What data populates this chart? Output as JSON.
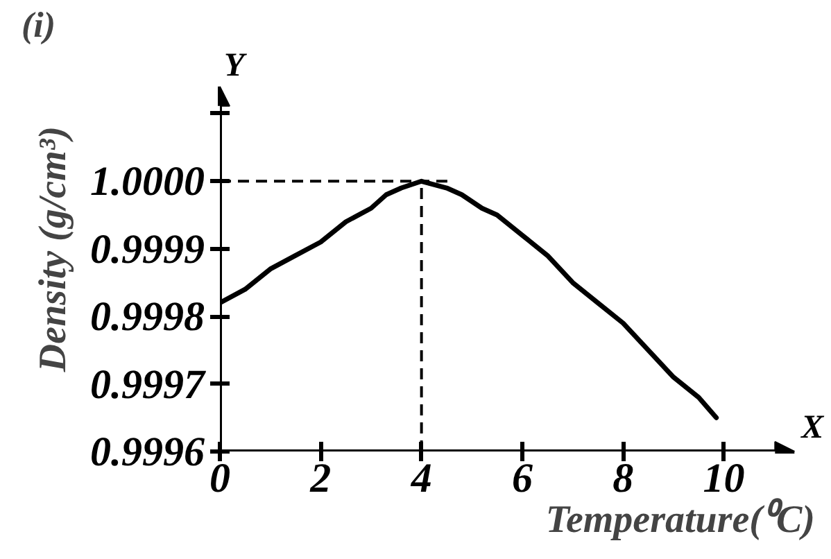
{
  "chart_data": {
    "type": "line",
    "title": "(i)",
    "xlabel": "Temperature(⁰C)",
    "ylabel": "Density (g/cm³)",
    "annotations": [
      "Y",
      "X"
    ],
    "xlim": [
      0,
      11.4
    ],
    "xticks": [
      0,
      2,
      4,
      6,
      8,
      10
    ],
    "ylim": [
      0.9996,
      1.00014
    ],
    "yticks": [
      0.9996,
      0.9997,
      0.9998,
      0.9999,
      {
        "value": 1.0,
        "label": "1.0000"
      },
      {
        "value": 1.0001,
        "label": null
      }
    ],
    "marker": "none",
    "line_style": "solid",
    "series": [
      {
        "color": "#000000",
        "x": [
          0,
          0.5,
          1,
          1.5,
          2,
          2.5,
          3,
          3.3,
          3.6,
          4,
          4.5,
          4.8,
          5.2,
          5.5,
          6,
          6.5,
          7,
          7.5,
          8,
          8.5,
          9,
          9.5,
          9.85
        ],
        "values": [
          0.99982,
          0.99984,
          0.99987,
          0.99989,
          0.99991,
          0.99994,
          0.99996,
          0.99998,
          0.99999,
          1.0,
          0.99999,
          0.99998,
          0.99996,
          0.99995,
          0.99992,
          0.99989,
          0.99985,
          0.99982,
          0.99979,
          0.99975,
          0.99971,
          0.99968,
          0.99965
        ]
      }
    ],
    "ref_lines": [
      {
        "axis": "y",
        "value": 1.0,
        "color": "#000000",
        "line_style": "dashed"
      },
      {
        "axis": "x",
        "value": 4,
        "color": "#000000",
        "line_style": "dashed"
      }
    ]
  }
}
